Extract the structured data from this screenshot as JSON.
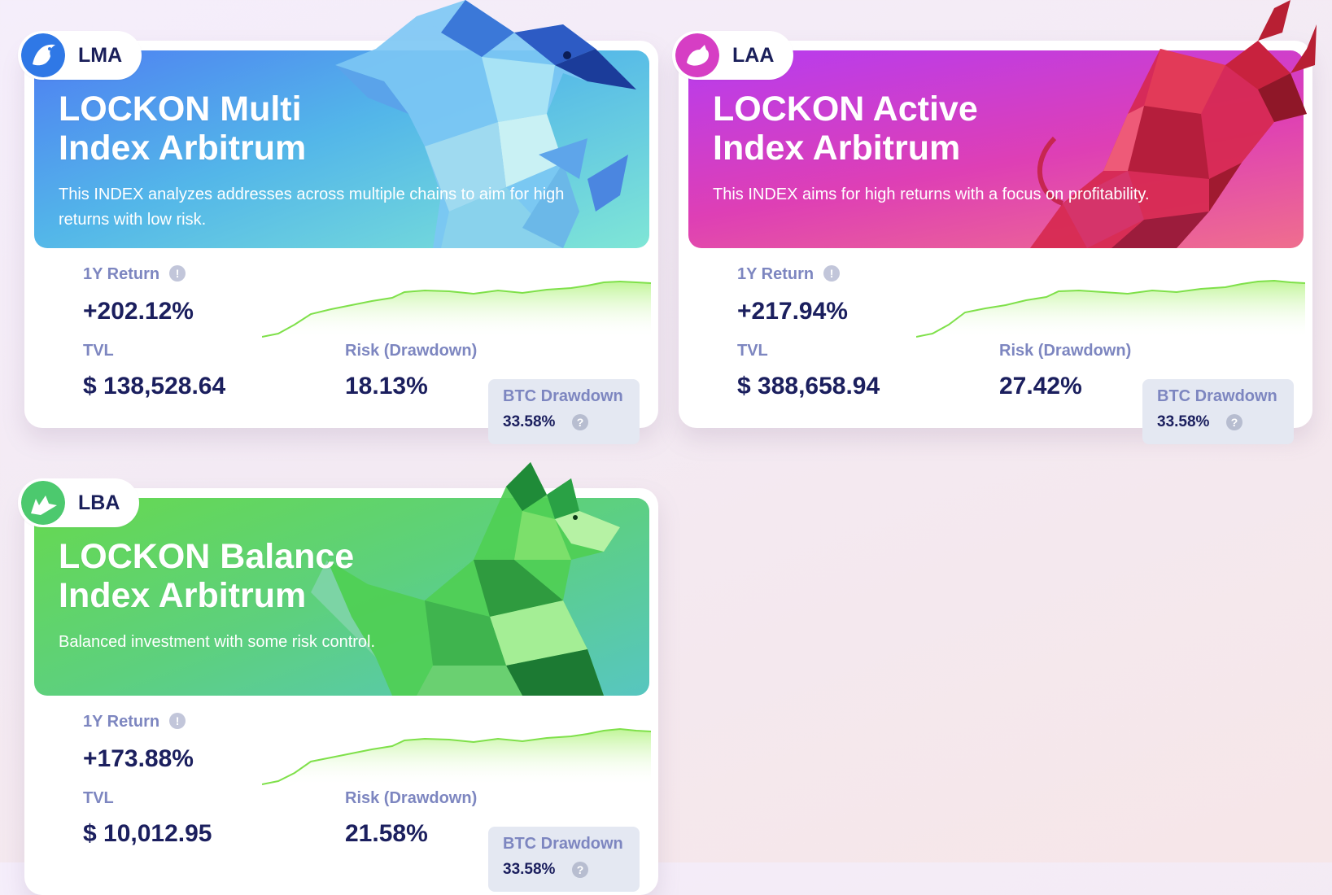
{
  "cards": [
    {
      "code": "LMA",
      "title_line1": "LOCKON Multi",
      "title_line2": "Index Arbitrum",
      "description": "This INDEX analyzes addresses across multiple chains to aim for high returns with low risk.",
      "return_label": "1Y Return",
      "return_value": "+202.12%",
      "tvl_label": "TVL",
      "tvl_value": "$ 138,528.64",
      "risk_label": "Risk (Drawdown)",
      "risk_value": "18.13%",
      "btc_label": "BTC Drawdown",
      "btc_value": "33.58%",
      "logo_icon": "penguin-icon",
      "art": "polygonal-penguin",
      "banner_colors": [
        "#4e7ff2",
        "#7fe6d6"
      ]
    },
    {
      "code": "LAA",
      "title_line1": "LOCKON Active",
      "title_line2": "Index Arbitrum",
      "description": "This INDEX aims for high returns with a focus on profitability.",
      "return_label": "1Y Return",
      "return_value": "+217.94%",
      "tvl_label": "TVL",
      "tvl_value": "$ 388,658.94",
      "risk_label": "Risk (Drawdown)",
      "risk_value": "27.42%",
      "btc_label": "BTC Drawdown",
      "btc_value": "33.58%",
      "logo_icon": "bull-icon",
      "art": "polygonal-bull",
      "banner_colors": [
        "#b63cf0",
        "#ef6e8e"
      ]
    },
    {
      "code": "LBA",
      "title_line1": "LOCKON Balance",
      "title_line2": "Index Arbitrum",
      "description": "Balanced investment with some risk control.",
      "return_label": "1Y Return",
      "return_value": "+173.88%",
      "tvl_label": "TVL",
      "tvl_value": "$ 10,012.95",
      "risk_label": "Risk (Drawdown)",
      "risk_value": "21.58%",
      "btc_label": "BTC Drawdown",
      "btc_value": "33.58%",
      "logo_icon": "fox-icon",
      "art": "polygonal-fox",
      "banner_colors": [
        "#66d94f",
        "#57c6c0"
      ]
    }
  ],
  "sparkline_color": "#8ee85a"
}
